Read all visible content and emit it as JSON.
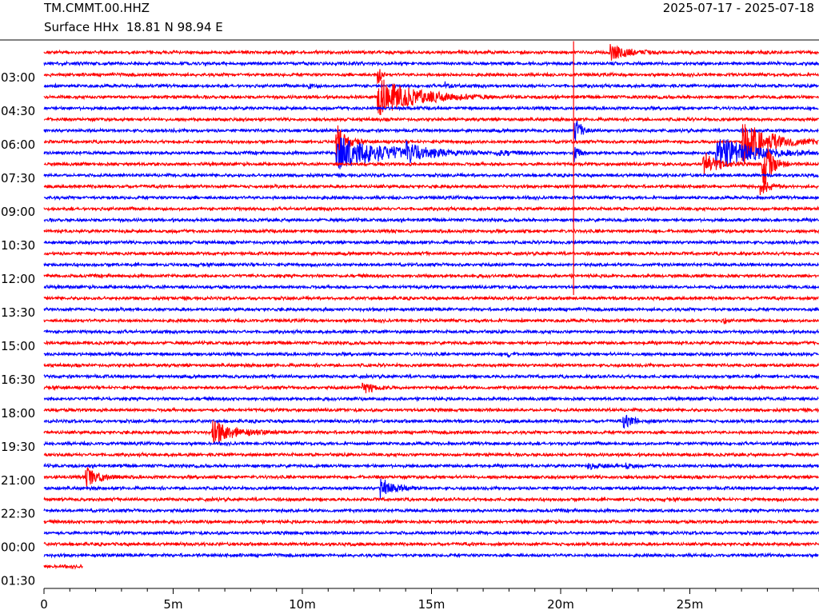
{
  "header": {
    "station": "TM.CMMT.00.HHZ",
    "channel": "Surface HHx  18.81 N 98.94 E",
    "dates": "2025-07-17 - 2025-07-18"
  },
  "colors": {
    "trace_a": "#ff0000",
    "trace_b": "#0000ff",
    "axes": "#000000"
  },
  "chart_data": {
    "type": "line",
    "plot_kind": "helicorder",
    "title": "",
    "xlabel": "",
    "ylabel": "",
    "xlim": [
      0,
      30
    ],
    "x_unit": "minutes",
    "x_tick_labels": [
      "0",
      "5m",
      "10m",
      "15m",
      "20m",
      "25m"
    ],
    "x_major_ticks": [
      0,
      5,
      10,
      15,
      20,
      25
    ],
    "x_minor_tick_step": 1,
    "row_count": 47,
    "row_minutes": 30,
    "color_cycle": [
      "red",
      "blue"
    ],
    "y_tick_labels": [
      "03:00",
      "04:30",
      "06:00",
      "07:30",
      "09:00",
      "10:30",
      "12:00",
      "13:30",
      "15:00",
      "16:30",
      "18:00",
      "19:30",
      "21:00",
      "22:30",
      "00:00",
      "01:30"
    ],
    "y_tick_rows": [
      3,
      6,
      9,
      12,
      15,
      18,
      21,
      24,
      27,
      30,
      33,
      36,
      39,
      42,
      45,
      48
    ],
    "last_row_end_minute": 1.5,
    "noise_level": 0.12,
    "events": [
      {
        "row": 0,
        "minute": 21.9,
        "amplitude": 0.7,
        "duration": 2.0
      },
      {
        "row": 2,
        "minute": 12.9,
        "amplitude": 1.4,
        "duration": 0.3
      },
      {
        "row": 3,
        "minute": 10.2,
        "amplitude": 0.3,
        "duration": 0.5
      },
      {
        "row": 3,
        "minute": 15.5,
        "amplitude": 0.3,
        "duration": 0.6
      },
      {
        "row": 4,
        "minute": 12.9,
        "amplitude": 1.7,
        "duration": 4.5
      },
      {
        "row": 7,
        "minute": 20.5,
        "amplitude": 1.2,
        "duration": 0.8
      },
      {
        "row": 9,
        "minute": 20.5,
        "amplitude": 1.1,
        "duration": 0.5
      },
      {
        "row": 8,
        "minute": 27.0,
        "amplitude": 2.2,
        "duration": 3.0
      },
      {
        "row": 9,
        "minute": 26.0,
        "amplitude": 1.6,
        "duration": 4.0
      },
      {
        "row": 10,
        "minute": 25.5,
        "amplitude": 1.2,
        "duration": 1.5
      },
      {
        "row": 10,
        "minute": 27.8,
        "amplitude": 2.6,
        "duration": 1.0
      },
      {
        "row": 8,
        "minute": 11.3,
        "amplitude": 1.7,
        "duration": 1.0
      },
      {
        "row": 9,
        "minute": 11.3,
        "amplitude": 1.5,
        "duration": 6.0
      },
      {
        "row": 9,
        "minute": 14.0,
        "amplitude": 0.8,
        "duration": 1.5
      },
      {
        "row": 9,
        "minute": 17.5,
        "amplitude": 0.25,
        "duration": 2.0
      },
      {
        "row": 12,
        "minute": 27.7,
        "amplitude": 0.8,
        "duration": 1.0
      },
      {
        "row": 24,
        "minute": 26.3,
        "amplitude": 0.5,
        "duration": 0.2
      },
      {
        "row": 27,
        "minute": 17.9,
        "amplitude": 0.5,
        "duration": 0.3
      },
      {
        "row": 30,
        "minute": 12.3,
        "amplitude": 0.6,
        "duration": 1.2
      },
      {
        "row": 33,
        "minute": 22.4,
        "amplitude": 0.6,
        "duration": 1.3
      },
      {
        "row": 34,
        "minute": 6.5,
        "amplitude": 1.1,
        "duration": 2.5
      },
      {
        "row": 37,
        "minute": 21.0,
        "amplitude": 0.2,
        "duration": 2.0
      },
      {
        "row": 37,
        "minute": 22.5,
        "amplitude": 0.3,
        "duration": 0.5
      },
      {
        "row": 38,
        "minute": 1.6,
        "amplitude": 0.9,
        "duration": 1.5
      },
      {
        "row": 39,
        "minute": 13.0,
        "amplitude": 0.9,
        "duration": 1.6
      }
    ],
    "spikes": [
      {
        "minute": 20.5,
        "row_start": -1,
        "row_end": 21
      }
    ],
    "flat_segments": [
      {
        "row": 12,
        "minute_start": 26.0,
        "minute_end": 29.5
      }
    ]
  }
}
